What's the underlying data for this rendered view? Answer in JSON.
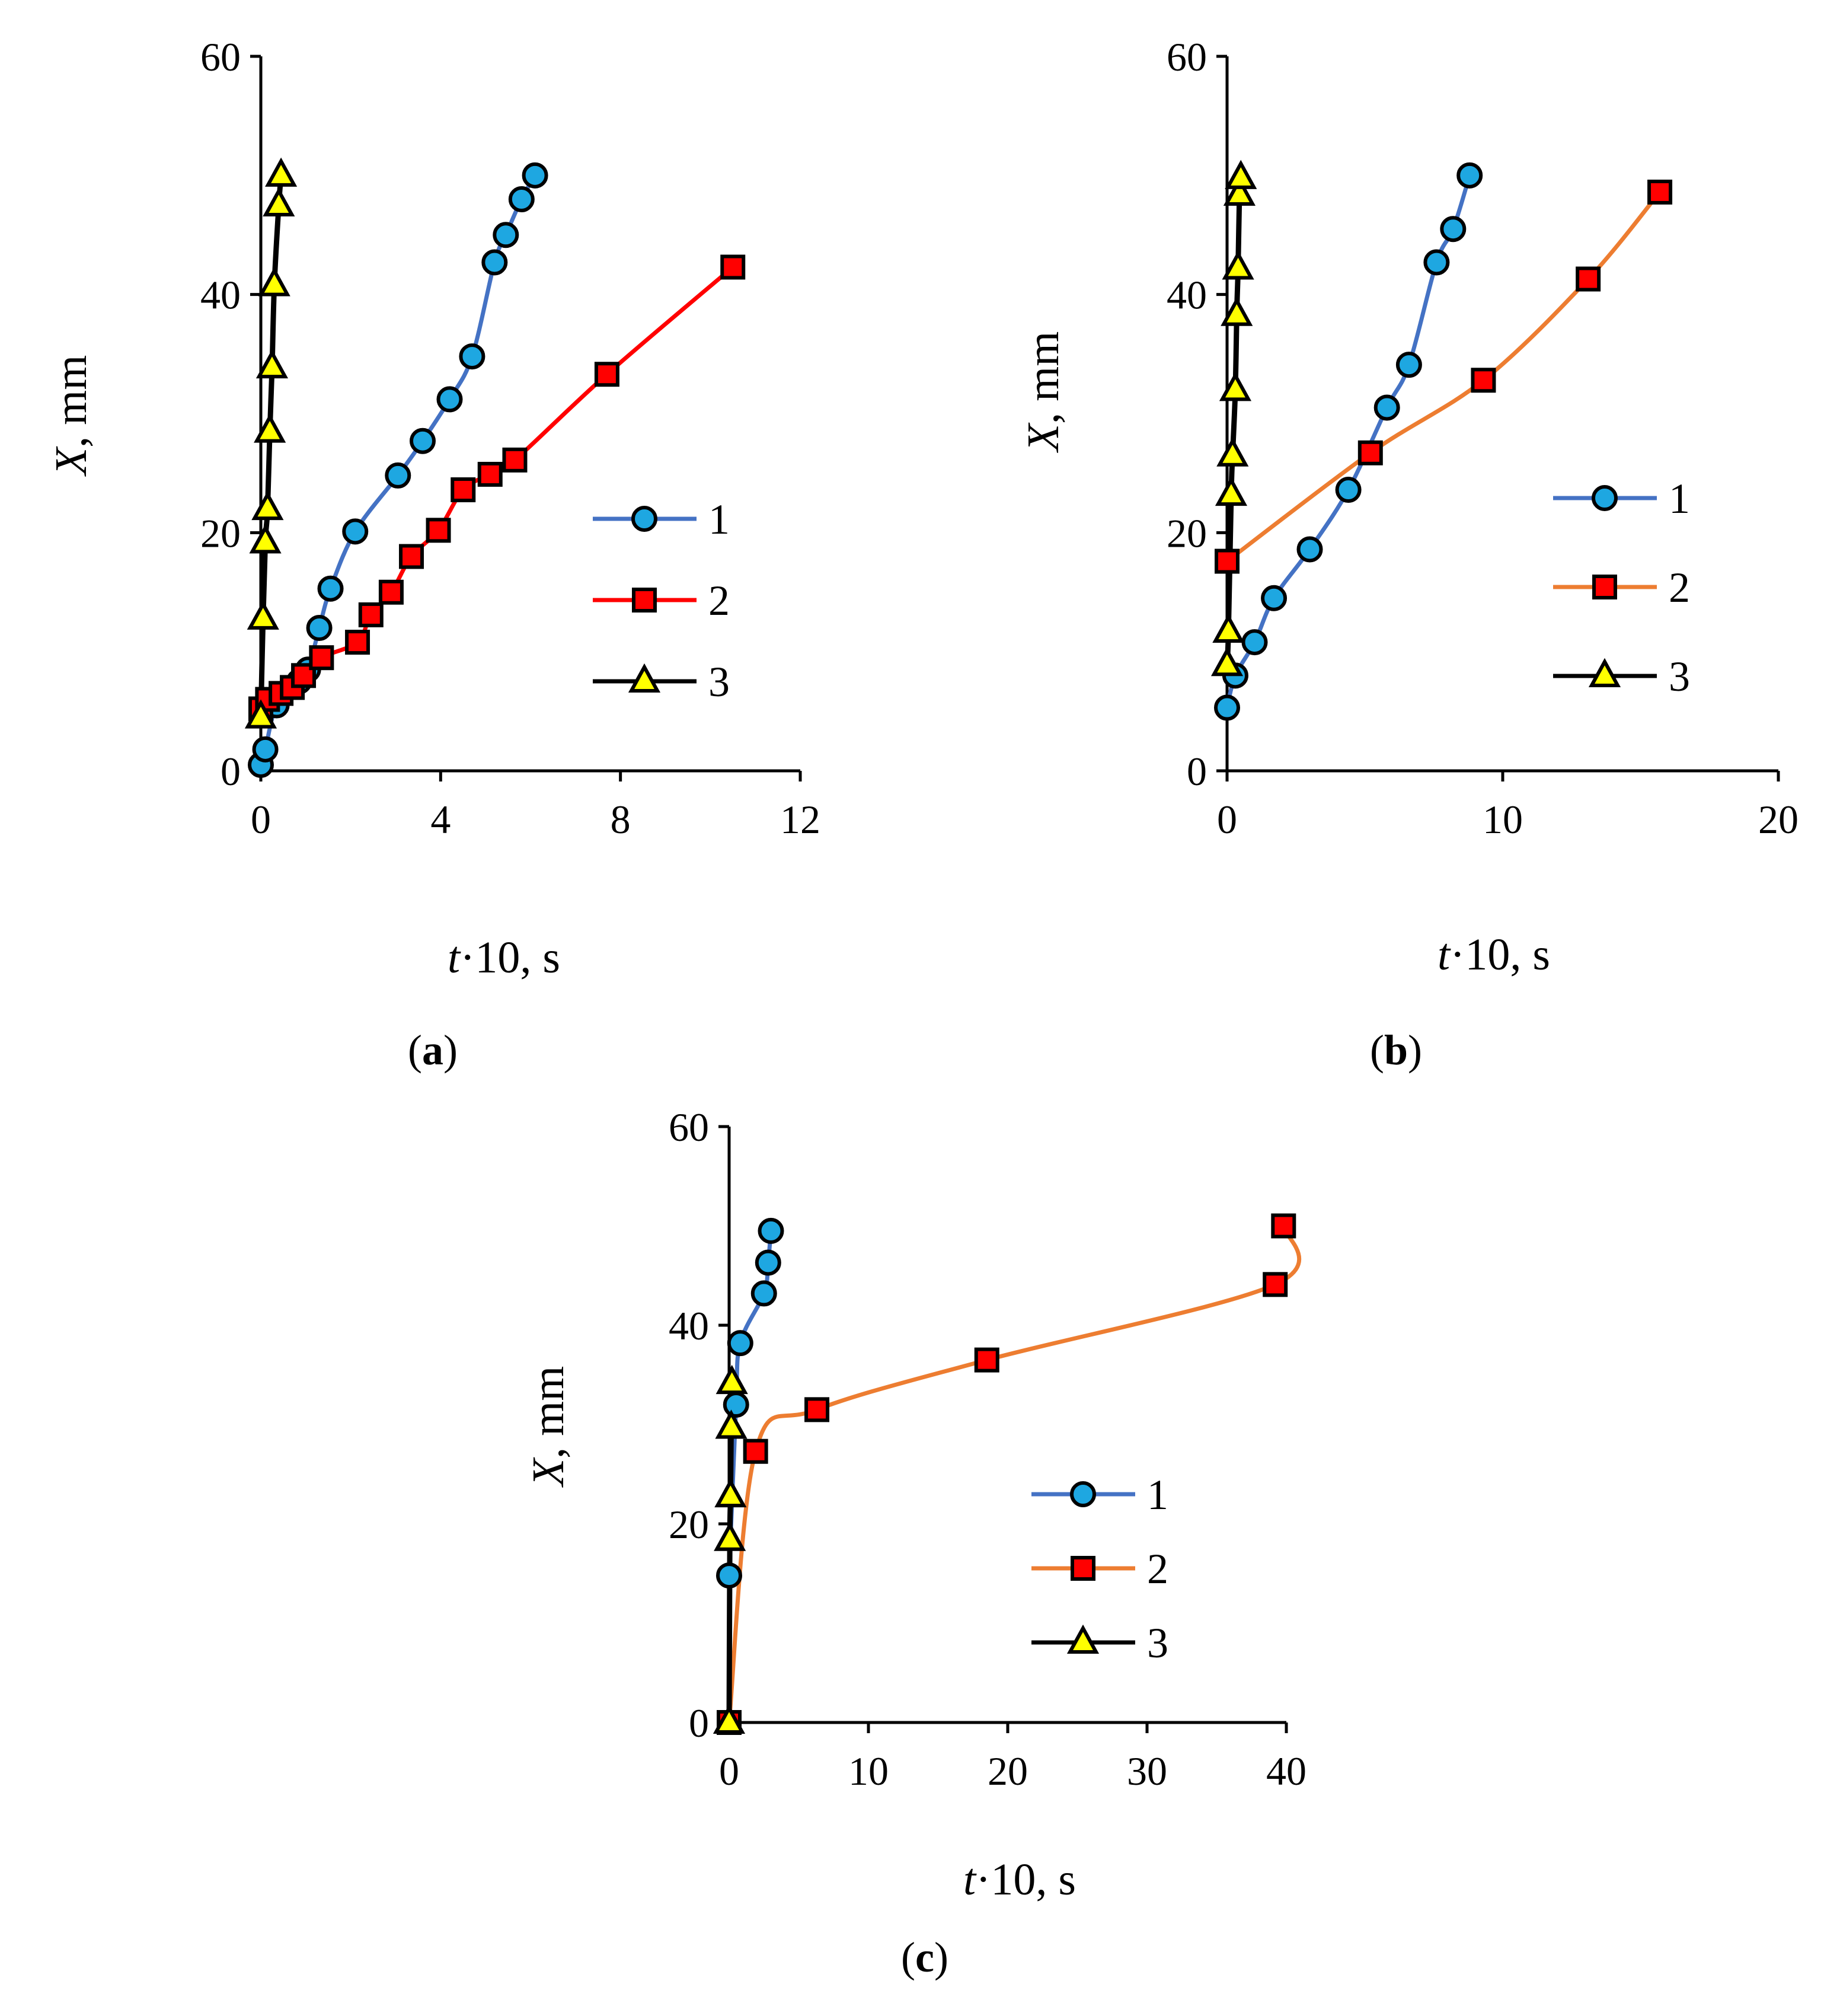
{
  "chart_data": [
    {
      "type": "line",
      "panel": "a",
      "caption_letter": "a",
      "xlabel_var": "t",
      "xlabel_rest": "·10, s",
      "ylabel_var": "X",
      "ylabel_rest": ", mm",
      "xlim": [
        0,
        12
      ],
      "ylim": [
        0,
        60
      ],
      "xticks": [
        0,
        4,
        8,
        12
      ],
      "yticks": [
        0,
        20,
        40,
        60
      ],
      "grid": false,
      "legend_position": "right-middle",
      "series": [
        {
          "name": "1",
          "color": "#4472C4",
          "marker": "circle",
          "x": [
            0.0,
            0.1,
            0.35,
            0.85,
            1.05,
            1.3,
            1.55,
            2.1,
            3.05,
            3.6,
            4.2,
            4.7,
            5.2,
            5.45,
            5.8,
            6.1
          ],
          "y": [
            0.5,
            1.8,
            5.5,
            7.5,
            8.5,
            12.0,
            15.3,
            20.1,
            24.8,
            27.7,
            31.2,
            34.8,
            42.7,
            45.0,
            48.0,
            50.0
          ]
        },
        {
          "name": "2",
          "color": "#FF0000",
          "marker": "square",
          "x": [
            0.0,
            0.15,
            0.45,
            0.7,
            0.95,
            1.35,
            2.15,
            2.45,
            2.9,
            3.35,
            3.95,
            4.5,
            5.1,
            5.65,
            7.7,
            10.5
          ],
          "y": [
            5.2,
            6.0,
            6.5,
            7.0,
            8.0,
            9.5,
            10.8,
            13.1,
            15.0,
            18.0,
            20.2,
            23.6,
            24.9,
            26.1,
            33.3,
            42.3
          ]
        },
        {
          "name": "3",
          "color": "#000000",
          "marker": "triangle",
          "x": [
            0.0,
            0.05,
            0.1,
            0.15,
            0.2,
            0.25,
            0.3,
            0.4,
            0.45
          ],
          "y": [
            4.5,
            12.8,
            19.2,
            22.0,
            28.5,
            33.9,
            40.8,
            47.5,
            50.0
          ]
        }
      ]
    },
    {
      "type": "line",
      "panel": "b",
      "caption_letter": "b",
      "xlabel_var": "t",
      "xlabel_rest": "·10, s",
      "ylabel_var": "X",
      "ylabel_rest": ", mm",
      "xlim": [
        0,
        20
      ],
      "ylim": [
        0,
        60
      ],
      "xticks": [
        0,
        10,
        20
      ],
      "yticks": [
        0,
        20,
        40,
        60
      ],
      "grid": false,
      "legend_position": "right-middle",
      "series": [
        {
          "name": "1",
          "color": "#4472C4",
          "marker": "circle",
          "x": [
            0.0,
            0.3,
            1.0,
            1.7,
            3.0,
            4.4,
            5.8,
            6.6,
            7.6,
            8.2,
            8.8
          ],
          "y": [
            5.3,
            8.0,
            10.8,
            14.5,
            18.6,
            23.6,
            30.5,
            34.1,
            42.7,
            45.5,
            50.0
          ]
        },
        {
          "name": "2",
          "color": "#ED7D31",
          "marker": "square",
          "x": [
            0.0,
            5.2,
            9.3,
            13.1,
            15.7
          ],
          "y": [
            17.6,
            26.7,
            32.8,
            41.3,
            48.6
          ]
        },
        {
          "name": "3",
          "color": "#000000",
          "marker": "triangle",
          "x": [
            0.0,
            0.05,
            0.15,
            0.2,
            0.3,
            0.35,
            0.4,
            0.45,
            0.5
          ],
          "y": [
            8.9,
            11.7,
            23.2,
            26.5,
            32.0,
            38.3,
            42.2,
            48.4,
            49.8
          ]
        }
      ]
    },
    {
      "type": "line",
      "panel": "c",
      "caption_letter": "c",
      "xlabel_var": "t",
      "xlabel_rest": "·10, s",
      "ylabel_var": "X",
      "ylabel_rest": ", mm",
      "xlim": [
        0,
        40
      ],
      "ylim": [
        0,
        60
      ],
      "xticks": [
        0,
        10,
        20,
        30,
        40
      ],
      "yticks": [
        0,
        20,
        40,
        60
      ],
      "grid": false,
      "legend_position": "right-middle",
      "series": [
        {
          "name": "1",
          "color": "#4472C4",
          "marker": "circle",
          "x": [
            0.0,
            0.5,
            0.8,
            2.5,
            2.8,
            3.0
          ],
          "y": [
            14.8,
            32.0,
            38.2,
            43.2,
            46.3,
            49.5
          ]
        },
        {
          "name": "2",
          "color": "#ED7D31",
          "marker": "square",
          "x": [
            0.0,
            1.9,
            6.3,
            18.5,
            39.2,
            39.8
          ],
          "y": [
            0.0,
            27.3,
            31.5,
            36.5,
            44.1,
            50.0
          ]
        },
        {
          "name": "3",
          "color": "#000000",
          "marker": "triangle",
          "x": [
            0.0,
            0.05,
            0.1,
            0.15,
            0.2
          ],
          "y": [
            0.0,
            18.4,
            22.8,
            29.7,
            34.2
          ]
        }
      ]
    }
  ]
}
